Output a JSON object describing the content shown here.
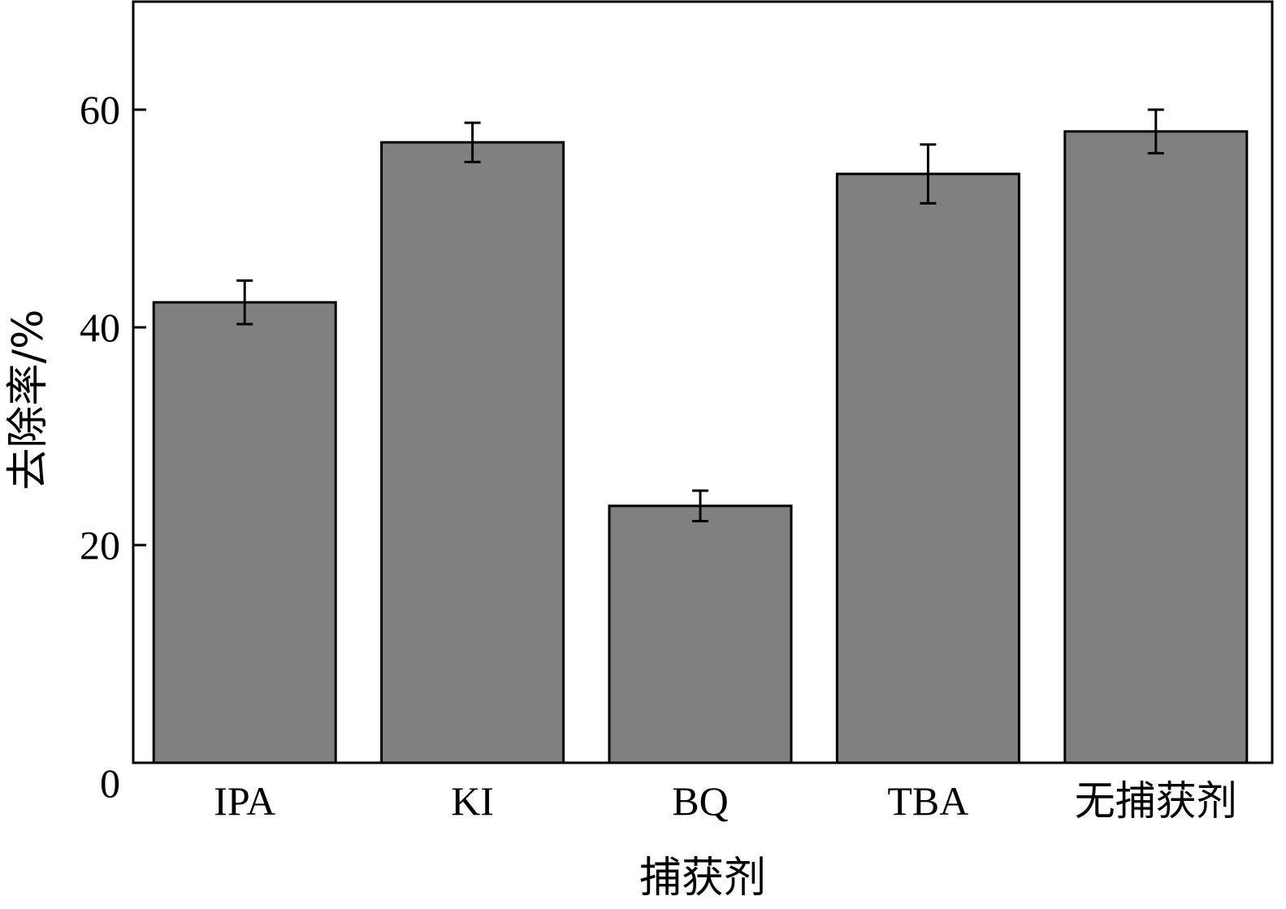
{
  "chart_data": {
    "type": "bar",
    "xlabel": "捕获剂",
    "ylabel": "去除率/%",
    "categories": [
      "IPA",
      "KI",
      "BQ",
      "TBA",
      "无捕获剂"
    ],
    "values": [
      42.3,
      57.0,
      23.6,
      54.1,
      58.0
    ],
    "errors": [
      2.0,
      1.8,
      1.4,
      2.7,
      2.0
    ],
    "ylim": [
      0,
      70
    ],
    "yticks": [
      0,
      20,
      40,
      60
    ],
    "grid": false,
    "bar_color": "#808080"
  }
}
